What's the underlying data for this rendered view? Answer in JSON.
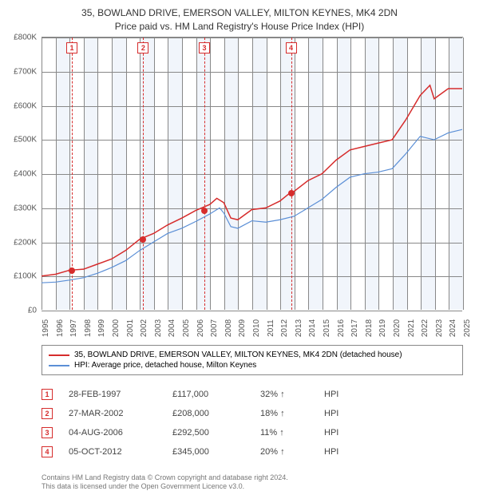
{
  "titles": {
    "line1": "35, BOWLAND DRIVE, EMERSON VALLEY, MILTON KEYNES, MK4 2DN",
    "line2": "Price paid vs. HM Land Registry's House Price Index (HPI)"
  },
  "chart": {
    "type": "line",
    "x_min": 1995,
    "x_max": 2025,
    "y_min": 0,
    "y_max": 800000,
    "y_ticks": [
      0,
      100000,
      200000,
      300000,
      400000,
      500000,
      600000,
      700000,
      800000
    ],
    "y_tick_labels": [
      "£0",
      "£100K",
      "£200K",
      "£300K",
      "£400K",
      "£500K",
      "£600K",
      "£700K",
      "£800K"
    ],
    "x_ticks": [
      1995,
      1996,
      1997,
      1998,
      1999,
      2000,
      2001,
      2002,
      2003,
      2004,
      2005,
      2006,
      2007,
      2008,
      2009,
      2010,
      2011,
      2012,
      2013,
      2014,
      2015,
      2016,
      2017,
      2018,
      2019,
      2020,
      2021,
      2022,
      2023,
      2024,
      2025
    ],
    "alt_band_color": "#f1f5fb",
    "grid_color": "#888888",
    "background_color": "#ffffff",
    "series": [
      {
        "name": "subject",
        "color": "#d62c2c",
        "width": 1.5,
        "points": [
          [
            1995,
            100000
          ],
          [
            1996,
            105000
          ],
          [
            1997,
            117000
          ],
          [
            1998,
            120000
          ],
          [
            1999,
            135000
          ],
          [
            2000,
            150000
          ],
          [
            2001,
            175000
          ],
          [
            2002,
            208000
          ],
          [
            2003,
            225000
          ],
          [
            2004,
            250000
          ],
          [
            2005,
            270000
          ],
          [
            2006,
            292500
          ],
          [
            2007,
            310000
          ],
          [
            2007.5,
            328000
          ],
          [
            2008,
            315000
          ],
          [
            2008.5,
            270000
          ],
          [
            2009,
            265000
          ],
          [
            2010,
            295000
          ],
          [
            2011,
            300000
          ],
          [
            2012,
            320000
          ],
          [
            2012.75,
            345000
          ],
          [
            2013,
            348000
          ],
          [
            2014,
            380000
          ],
          [
            2015,
            400000
          ],
          [
            2016,
            440000
          ],
          [
            2017,
            470000
          ],
          [
            2018,
            480000
          ],
          [
            2019,
            490000
          ],
          [
            2020,
            500000
          ],
          [
            2021,
            560000
          ],
          [
            2022,
            630000
          ],
          [
            2022.7,
            660000
          ],
          [
            2023,
            620000
          ],
          [
            2024,
            650000
          ],
          [
            2025,
            650000
          ]
        ]
      },
      {
        "name": "hpi",
        "color": "#5b8fd6",
        "width": 1.2,
        "points": [
          [
            1995,
            80000
          ],
          [
            1996,
            82000
          ],
          [
            1997,
            88000
          ],
          [
            1998,
            95000
          ],
          [
            1999,
            108000
          ],
          [
            2000,
            125000
          ],
          [
            2001,
            145000
          ],
          [
            2002,
            175000
          ],
          [
            2003,
            200000
          ],
          [
            2004,
            225000
          ],
          [
            2005,
            240000
          ],
          [
            2006,
            260000
          ],
          [
            2007,
            282000
          ],
          [
            2007.7,
            300000
          ],
          [
            2008,
            285000
          ],
          [
            2008.5,
            245000
          ],
          [
            2009,
            240000
          ],
          [
            2010,
            262000
          ],
          [
            2011,
            258000
          ],
          [
            2012,
            265000
          ],
          [
            2013,
            275000
          ],
          [
            2014,
            300000
          ],
          [
            2015,
            325000
          ],
          [
            2016,
            360000
          ],
          [
            2017,
            390000
          ],
          [
            2018,
            400000
          ],
          [
            2019,
            405000
          ],
          [
            2020,
            415000
          ],
          [
            2021,
            460000
          ],
          [
            2022,
            510000
          ],
          [
            2023,
            500000
          ],
          [
            2024,
            520000
          ],
          [
            2025,
            530000
          ]
        ]
      }
    ],
    "sale_markers": [
      {
        "n": "1",
        "year": 1997.16,
        "price": 117000
      },
      {
        "n": "2",
        "year": 2002.24,
        "price": 208000
      },
      {
        "n": "3",
        "year": 2006.59,
        "price": 292500
      },
      {
        "n": "4",
        "year": 2012.76,
        "price": 345000
      }
    ]
  },
  "legend": {
    "items": [
      {
        "color": "#d62c2c",
        "label": "35, BOWLAND DRIVE, EMERSON VALLEY, MILTON KEYNES, MK4 2DN (detached house)"
      },
      {
        "color": "#5b8fd6",
        "label": "HPI: Average price, detached house, Milton Keynes"
      }
    ]
  },
  "sales": [
    {
      "n": "1",
      "date": "28-FEB-1997",
      "price": "£117,000",
      "diff": "32% ↑",
      "hpi": "HPI"
    },
    {
      "n": "2",
      "date": "27-MAR-2002",
      "price": "£208,000",
      "diff": "18% ↑",
      "hpi": "HPI"
    },
    {
      "n": "3",
      "date": "04-AUG-2006",
      "price": "£292,500",
      "diff": "11% ↑",
      "hpi": "HPI"
    },
    {
      "n": "4",
      "date": "05-OCT-2012",
      "price": "£345,000",
      "diff": "20% ↑",
      "hpi": "HPI"
    }
  ],
  "footer": {
    "line1": "Contains HM Land Registry data © Crown copyright and database right 2024.",
    "line2": "This data is licensed under the Open Government Licence v3.0."
  }
}
